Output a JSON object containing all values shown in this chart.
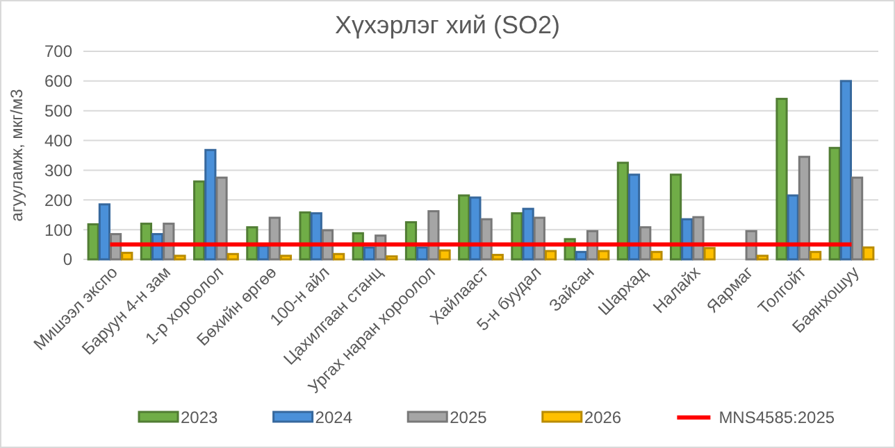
{
  "chart_data": {
    "type": "bar",
    "title": "Хүхэрлэг хий (SO2)",
    "ylabel": "агууламж, мкг/м3",
    "categories": [
      "Мишээл экспо",
      "Баруун 4-н зам",
      "1-р хороолол",
      "Бөхийн өргөө",
      "100-н айл",
      "Цахилгаан станц",
      "Ургах наран хороолол",
      "Хайлааст",
      "5-н буудал",
      "Зайсан",
      "Шархад",
      "Налайх",
      "Яармаг",
      "Толгойт",
      "Баянхошуу"
    ],
    "series": [
      {
        "name": "2023",
        "color": "#70ad47",
        "values": [
          118,
          120,
          262,
          108,
          158,
          88,
          125,
          215,
          155,
          68,
          325,
          285,
          null,
          540,
          375
        ]
      },
      {
        "name": "2024",
        "color": "#4a90d9",
        "values": [
          185,
          85,
          368,
          45,
          155,
          40,
          40,
          208,
          170,
          25,
          285,
          135,
          null,
          215,
          600
        ]
      },
      {
        "name": "2025",
        "color": "#a5a5a5",
        "values": [
          85,
          120,
          275,
          140,
          98,
          80,
          162,
          135,
          140,
          95,
          108,
          142,
          95,
          345,
          275
        ]
      },
      {
        "name": "2026",
        "color": "#ffc000",
        "values": [
          22,
          12,
          18,
          12,
          18,
          10,
          30,
          15,
          28,
          28,
          25,
          38,
          12,
          25,
          40
        ]
      },
      {
        "name": "MNS4585:2025",
        "type": "line",
        "color": "#ff0000",
        "values": [
          50,
          50,
          50,
          50,
          50,
          50,
          50,
          50,
          50,
          50,
          50,
          50,
          50,
          50,
          50
        ]
      }
    ],
    "ylim": [
      0,
      700
    ],
    "yticks": [
      0,
      100,
      200,
      300,
      400,
      500,
      600,
      700
    ],
    "grid": "y",
    "legend": "bottom",
    "marker": "none"
  }
}
